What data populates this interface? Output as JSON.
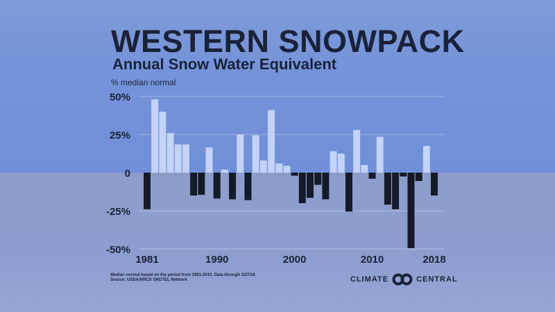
{
  "chart_data": {
    "type": "bar",
    "title": "WESTERN SNOWPACK",
    "subtitle": "Annual Snow Water Equivalent",
    "ylabel": "% median normal",
    "xlabel": "",
    "ylim": [
      -50,
      50
    ],
    "yticks": [
      50,
      25,
      0,
      -25,
      -50
    ],
    "ytick_labels": [
      "50%",
      "25%",
      "0",
      "-25%",
      "-50%"
    ],
    "xtick_labels": [
      "1981",
      "1990",
      "2000",
      "2010",
      "2018"
    ],
    "grid": true,
    "categories": [
      1981,
      1982,
      1983,
      1984,
      1985,
      1986,
      1987,
      1988,
      1989,
      1990,
      1991,
      1992,
      1993,
      1994,
      1995,
      1996,
      1997,
      1998,
      1999,
      2000,
      2001,
      2002,
      2003,
      2004,
      2005,
      2006,
      2007,
      2008,
      2009,
      2010,
      2011,
      2012,
      2013,
      2014,
      2015,
      2016,
      2017,
      2018
    ],
    "values": [
      -24,
      48,
      40,
      26,
      18.5,
      18.5,
      -15,
      -14.5,
      16.5,
      -17,
      2,
      -17.5,
      25,
      -18,
      24.5,
      8,
      41,
      6,
      4.5,
      -2,
      -20,
      -16.5,
      -8,
      -17.5,
      14,
      12.5,
      -25.5,
      28,
      5,
      -4,
      23.5,
      -21,
      -24,
      -2.5,
      -49.5,
      -5.5,
      17.5,
      -15
    ],
    "colors": {
      "positive": "#c4d3f8",
      "negative": "#141a28",
      "text": "#1a2238"
    }
  },
  "footer": {
    "note_line1": "Median normal based on the period from 1981-2010. Data through 3/27/18",
    "note_line2": "Source: USDA/NRCS SNOTEL Network",
    "logo_left": "CLIMATE",
    "logo_right": "CENTRAL"
  }
}
